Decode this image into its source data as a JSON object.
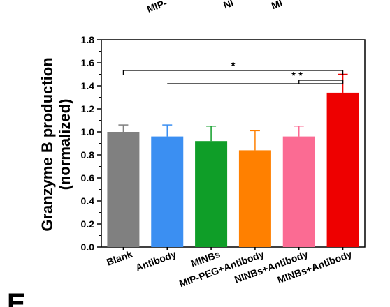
{
  "panel_label": "E",
  "top_cropped_labels": [
    "MIP-",
    "NI",
    "MI"
  ],
  "colors": {
    "Blank": "#808080",
    "Antibody": "#3b8ff2",
    "MINBs": "#0f9e28",
    "MIP-PEG+Antibody": "#ff8000",
    "NINBs+Antibody": "#fb6b93",
    "MINBs+Antibody": "#ee0000"
  },
  "chart_data": {
    "type": "bar",
    "ylabel_line1": "Granzyme B production",
    "ylabel_line2": "(normalized)",
    "xlabel": "",
    "ylim": [
      0.0,
      1.8
    ],
    "yticks": [
      "0.0",
      "0.2",
      "0.4",
      "0.6",
      "0.8",
      "1.0",
      "1.2",
      "1.4",
      "1.6",
      "1.8"
    ],
    "categories": [
      "Blank",
      "Antibody",
      "MINBs",
      "MIP-PEG+Antibody",
      "NINBs+Antibody",
      "MINBs+Antibody"
    ],
    "values": [
      1.0,
      0.96,
      0.92,
      0.84,
      0.96,
      1.34
    ],
    "errors": [
      0.06,
      0.1,
      0.13,
      0.17,
      0.09,
      0.16
    ],
    "significance": [
      {
        "from": "Blank",
        "to": "MINBs+Antibody",
        "label": "*"
      },
      {
        "from": "Antibody",
        "to": "MINBs+Antibody",
        "label": "* *"
      },
      {
        "from": "NINBs+Antibody",
        "to": "MINBs+Antibody",
        "label": ""
      }
    ]
  }
}
